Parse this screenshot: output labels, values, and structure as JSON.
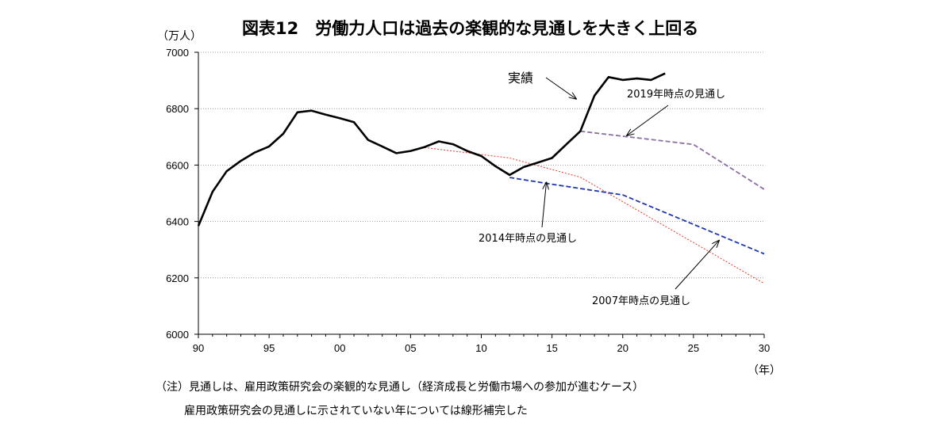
{
  "title": "図表12　労働力人口は過去の楽観的な見通しを大きく上回る",
  "unit_label": "（万人）",
  "year_label": "（年）",
  "notes": [
    "（注）見通しは、雇用政策研究会の楽観的な見通し（経済成長と労働市場への参加が進むケース）",
    "雇用政策研究会の見通しに示されていない年については線形補完した"
  ],
  "chart_data": {
    "type": "line",
    "title": "図表12　労働力人口は過去の楽観的な見通しを大きく上回る",
    "xlabel": "（年）",
    "ylabel": "（万人）",
    "xlim": [
      1990,
      2030
    ],
    "ylim": [
      6000,
      7000
    ],
    "x_ticks": [
      1990,
      1995,
      2000,
      2005,
      2010,
      2015,
      2020,
      2025,
      2030
    ],
    "x_tick_labels": [
      "90",
      "95",
      "00",
      "05",
      "10",
      "15",
      "20",
      "25",
      "30"
    ],
    "y_ticks": [
      6000,
      6200,
      6400,
      6600,
      6800,
      7000
    ],
    "y_tick_labels": [
      "6000",
      "6200",
      "6400",
      "6600",
      "6800",
      "7000"
    ],
    "grid": "horizontal dotted",
    "series": [
      {
        "name": "実績",
        "style": "solid",
        "color": "#000000",
        "x": [
          1990,
          1991,
          1992,
          1993,
          1994,
          1995,
          1996,
          1997,
          1998,
          1999,
          2000,
          2001,
          2002,
          2003,
          2004,
          2005,
          2006,
          2007,
          2008,
          2009,
          2010,
          2011,
          2012,
          2013,
          2014,
          2015,
          2016,
          2017,
          2018,
          2019,
          2020,
          2021,
          2022,
          2023
        ],
        "values": [
          6384,
          6505,
          6578,
          6615,
          6645,
          6666,
          6711,
          6787,
          6793,
          6779,
          6766,
          6752,
          6689,
          6666,
          6642,
          6650,
          6664,
          6684,
          6674,
          6650,
          6632,
          6596,
          6565,
          6593,
          6609,
          6625,
          6673,
          6720,
          6846,
          6912,
          6902,
          6907,
          6902,
          6925
        ]
      },
      {
        "name": "2007年時点の見通し",
        "style": "dotted",
        "color": "#e8392f",
        "x": [
          2006,
          2012,
          2017,
          2030
        ],
        "values": [
          6662,
          6625,
          6557,
          6180
        ]
      },
      {
        "name": "2014年時点の見通し",
        "style": "dashed",
        "color": "#1f35b0",
        "x": [
          2012,
          2015,
          2020,
          2030
        ],
        "values": [
          6556,
          6532,
          6494,
          6285
        ]
      },
      {
        "name": "2019年時点の見通し",
        "style": "dashed",
        "color": "#8a6fa0",
        "x": [
          2017,
          2025,
          2030
        ],
        "values": [
          6720,
          6673,
          6514
        ]
      }
    ],
    "annotations": [
      {
        "text": "実績",
        "series": "実績"
      },
      {
        "text": "2019年時点の見通し",
        "series": "2019年時点の見通し"
      },
      {
        "text": "2014年時点の見通し",
        "series": "2014年時点の見通し"
      },
      {
        "text": "2007年時点の見通し",
        "series": "2007年時点の見通し"
      }
    ]
  }
}
